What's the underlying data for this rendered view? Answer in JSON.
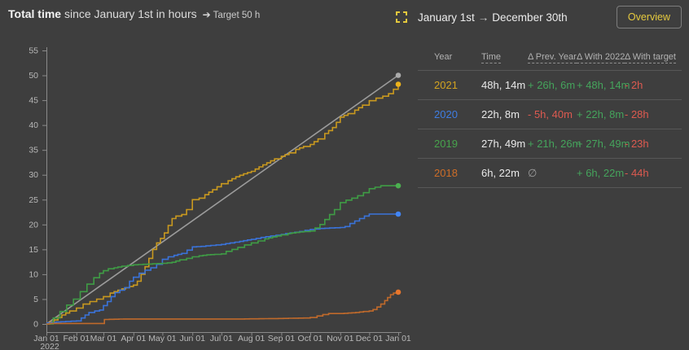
{
  "chart_header": {
    "title_bold": "Total time",
    "title_rest": " since January 1st in hours",
    "target_arrow": "➔",
    "target_note": "Target 50 h"
  },
  "header_right": {
    "range_start": "January 1st",
    "range_arrow": "→",
    "range_end": "December 30th",
    "overview_label": "Overview"
  },
  "table": {
    "columns": [
      "Year",
      "Time",
      "Δ Prev. Year",
      "Δ With 2022",
      "Δ With target"
    ],
    "rows": [
      {
        "year": "2021",
        "time": "48h, 14m",
        "prev_year": "+ 26h, 6m",
        "with_2022": "+ 48h, 14m",
        "with_target": "- 2h"
      },
      {
        "year": "2020",
        "time": "22h, 8m",
        "prev_year": "- 5h, 40m",
        "with_2022": "+ 22h, 8m",
        "with_target": "- 28h"
      },
      {
        "year": "2019",
        "time": "27h, 49m",
        "prev_year": "+ 21h, 26m",
        "with_2022": "+ 27h, 49m",
        "with_target": "- 23h"
      },
      {
        "year": "2018",
        "time": "6h, 22m",
        "prev_year": "∅",
        "with_2022": "+ 6h, 22m",
        "with_target": "- 44h"
      }
    ]
  },
  "colors": {
    "background": "#3e3e3e",
    "axis": "#8a8a8a",
    "tick_label": "#b8b8b8",
    "divider": "#575757",
    "accent_yellow": "#e6ca3e",
    "positive_text": "#45a45c",
    "negative_text": "#dd5a50"
  },
  "chart_data": {
    "type": "line",
    "title_bold": "Total time",
    "title_rest": " since January 1st in hours",
    "target_label": "Target 50 h",
    "x_unit": "day_of_year",
    "xlim": [
      0,
      364
    ],
    "ylim": [
      0,
      55
    ],
    "grid": false,
    "legend": "table on right panel",
    "y_ticks": [
      0,
      5,
      10,
      15,
      20,
      25,
      30,
      35,
      40,
      45,
      50,
      55
    ],
    "x_ticks": [
      "Jan 01",
      "Feb 01",
      "Mar 01",
      "Apr 01",
      "May 01",
      "Jun 01",
      "Jul 01",
      "Aug 01",
      "Sep 01",
      "Oct 01",
      "Nov 01",
      "Dec 01",
      "Jan 01"
    ],
    "x_tick_days": [
      0,
      31,
      59,
      90,
      120,
      151,
      181,
      212,
      243,
      273,
      304,
      334,
      364
    ],
    "x_first_tick_sublabel": "2022",
    "series": [
      {
        "name": "Target",
        "total": 50,
        "color": "#9b9b9b",
        "dot_color": "#ababab",
        "style": "straight",
        "points": [
          [
            0,
            0
          ],
          [
            364,
            50
          ]
        ]
      },
      {
        "name": "2021",
        "total_label": "48h, 14m",
        "color": "#c9991f",
        "dot_color": "#ecb21c",
        "style": "steps",
        "points": [
          [
            0,
            0
          ],
          [
            8,
            0.8
          ],
          [
            16,
            1.8
          ],
          [
            24,
            2.6
          ],
          [
            31,
            3.2
          ],
          [
            38,
            4
          ],
          [
            45,
            4.5
          ],
          [
            52,
            5
          ],
          [
            59,
            5.5
          ],
          [
            66,
            6.2
          ],
          [
            74,
            6.8
          ],
          [
            82,
            7.3
          ],
          [
            90,
            7.8
          ],
          [
            94,
            8.6
          ],
          [
            98,
            10
          ],
          [
            102,
            11.5
          ],
          [
            106,
            13.2
          ],
          [
            110,
            15
          ],
          [
            114,
            16.3
          ],
          [
            118,
            17.2
          ],
          [
            122,
            18.3
          ],
          [
            126,
            19.8
          ],
          [
            130,
            21.2
          ],
          [
            134,
            21.7
          ],
          [
            140,
            22
          ],
          [
            145,
            23
          ],
          [
            151,
            25
          ],
          [
            158,
            25.3
          ],
          [
            164,
            26
          ],
          [
            172,
            27
          ],
          [
            181,
            28.2
          ],
          [
            188,
            28.8
          ],
          [
            196,
            29.6
          ],
          [
            204,
            30.2
          ],
          [
            212,
            30.7
          ],
          [
            220,
            31.6
          ],
          [
            228,
            32.4
          ],
          [
            236,
            33.2
          ],
          [
            243,
            33.7
          ],
          [
            251,
            34.4
          ],
          [
            258,
            35.1
          ],
          [
            266,
            35.7
          ],
          [
            273,
            36.1
          ],
          [
            281,
            37.2
          ],
          [
            288,
            38.3
          ],
          [
            296,
            39.5
          ],
          [
            304,
            41.6
          ],
          [
            312,
            42.3
          ],
          [
            319,
            43
          ],
          [
            327,
            44
          ],
          [
            334,
            44.9
          ],
          [
            341,
            45.4
          ],
          [
            348,
            45.8
          ],
          [
            354,
            46.3
          ],
          [
            359,
            47.2
          ],
          [
            364,
            48.2
          ]
        ]
      },
      {
        "name": "2020",
        "total_label": "22h, 8m",
        "color": "#3a73da",
        "dot_color": "#4285f4",
        "style": "steps",
        "points": [
          [
            0,
            0.2
          ],
          [
            10,
            0.4
          ],
          [
            20,
            0.5
          ],
          [
            31,
            0.6
          ],
          [
            36,
            1.2
          ],
          [
            40,
            1.8
          ],
          [
            44,
            2.3
          ],
          [
            50,
            2.6
          ],
          [
            55,
            2.8
          ],
          [
            59,
            3.7
          ],
          [
            63,
            4.5
          ],
          [
            67,
            5.5
          ],
          [
            71,
            6.3
          ],
          [
            76,
            6.8
          ],
          [
            81,
            7.3
          ],
          [
            86,
            8.6
          ],
          [
            90,
            9.4
          ],
          [
            96,
            10.2
          ],
          [
            102,
            10.8
          ],
          [
            108,
            11.3
          ],
          [
            114,
            12
          ],
          [
            120,
            13
          ],
          [
            126,
            13.5
          ],
          [
            132,
            13.8
          ],
          [
            140,
            14.2
          ],
          [
            151,
            15.5
          ],
          [
            160,
            15.6
          ],
          [
            170,
            15.8
          ],
          [
            181,
            16
          ],
          [
            190,
            16.3
          ],
          [
            200,
            16.6
          ],
          [
            208,
            16.9
          ],
          [
            212,
            17
          ],
          [
            222,
            17.4
          ],
          [
            232,
            17.7
          ],
          [
            243,
            18
          ],
          [
            252,
            18.3
          ],
          [
            262,
            18.6
          ],
          [
            273,
            19
          ],
          [
            283,
            19.2
          ],
          [
            293,
            19.3
          ],
          [
            304,
            19.4
          ],
          [
            309,
            19.6
          ],
          [
            314,
            20.2
          ],
          [
            319,
            20.7
          ],
          [
            324,
            21.2
          ],
          [
            329,
            21.7
          ],
          [
            334,
            22.1
          ],
          [
            364,
            22.1
          ]
        ]
      },
      {
        "name": "2019",
        "total_label": "27h, 49m",
        "color": "#3f9c45",
        "dot_color": "#4caf50",
        "style": "steps",
        "points": [
          [
            0,
            0
          ],
          [
            7,
            1.2
          ],
          [
            14,
            2.5
          ],
          [
            21,
            3.8
          ],
          [
            28,
            5
          ],
          [
            35,
            6.5
          ],
          [
            42,
            8
          ],
          [
            49,
            9.3
          ],
          [
            55,
            10.2
          ],
          [
            59,
            10.7
          ],
          [
            64,
            11.1
          ],
          [
            70,
            11.3
          ],
          [
            78,
            11.6
          ],
          [
            90,
            11.9
          ],
          [
            100,
            12
          ],
          [
            110,
            12.1
          ],
          [
            120,
            12.2
          ],
          [
            130,
            12.4
          ],
          [
            138,
            12.9
          ],
          [
            145,
            13.2
          ],
          [
            151,
            13.5
          ],
          [
            158,
            13.7
          ],
          [
            166,
            13.9
          ],
          [
            174,
            14
          ],
          [
            181,
            14.1
          ],
          [
            186,
            14.6
          ],
          [
            192,
            15
          ],
          [
            198,
            15.4
          ],
          [
            205,
            15.9
          ],
          [
            212,
            16.3
          ],
          [
            219,
            16.7
          ],
          [
            226,
            17.1
          ],
          [
            234,
            17.5
          ],
          [
            243,
            17.9
          ],
          [
            250,
            18.2
          ],
          [
            258,
            18.4
          ],
          [
            266,
            18.6
          ],
          [
            273,
            18.7
          ],
          [
            278,
            19.3
          ],
          [
            283,
            20
          ],
          [
            288,
            21
          ],
          [
            293,
            22
          ],
          [
            298,
            23
          ],
          [
            304,
            24.4
          ],
          [
            310,
            24.9
          ],
          [
            316,
            25.3
          ],
          [
            322,
            25.8
          ],
          [
            328,
            26.4
          ],
          [
            334,
            27.2
          ],
          [
            340,
            27.5
          ],
          [
            346,
            27.8
          ],
          [
            364,
            27.8
          ]
        ]
      },
      {
        "name": "2018",
        "total_label": "6h, 22m",
        "color": "#c06a2b",
        "dot_color": "#e8762c",
        "style": "steps",
        "points": [
          [
            0,
            0
          ],
          [
            3,
            0.1
          ],
          [
            58,
            0.1
          ],
          [
            60,
            0.9
          ],
          [
            80,
            1
          ],
          [
            120,
            1
          ],
          [
            160,
            1
          ],
          [
            200,
            1
          ],
          [
            240,
            1.1
          ],
          [
            266,
            1.2
          ],
          [
            273,
            1.3
          ],
          [
            280,
            1.6
          ],
          [
            286,
            1.9
          ],
          [
            292,
            2.1
          ],
          [
            304,
            2.1
          ],
          [
            312,
            2.2
          ],
          [
            320,
            2.3
          ],
          [
            328,
            2.5
          ],
          [
            334,
            2.6
          ],
          [
            338,
            2.9
          ],
          [
            342,
            3.4
          ],
          [
            346,
            4
          ],
          [
            350,
            4.7
          ],
          [
            353,
            5.3
          ],
          [
            356,
            5.9
          ],
          [
            359,
            6.2
          ],
          [
            364,
            6.4
          ]
        ]
      }
    ]
  }
}
